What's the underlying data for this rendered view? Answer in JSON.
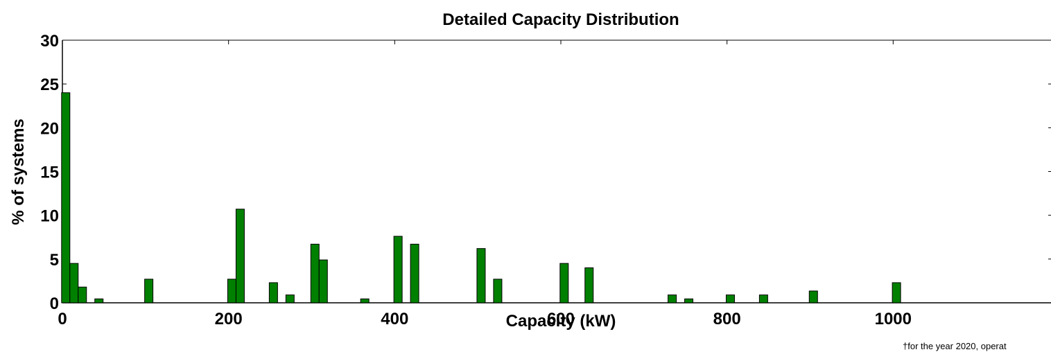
{
  "chart_data": {
    "type": "bar",
    "title": "Detailed Capacity Distribution",
    "xlabel": "Capacity (kW)",
    "ylabel": "% of systems",
    "xlim": [
      0,
      1190
    ],
    "ylim": [
      0,
      30
    ],
    "xticks": [
      0,
      200,
      400,
      600,
      800,
      1000
    ],
    "yticks": [
      0,
      5,
      10,
      15,
      20,
      25,
      30
    ],
    "bar_width": 10,
    "color": "#008000",
    "grid": false,
    "footnote": "†for the year 2020, operat",
    "bars": [
      {
        "x": 4,
        "value": 24.0
      },
      {
        "x": 14,
        "value": 4.5
      },
      {
        "x": 24,
        "value": 1.8
      },
      {
        "x": 44,
        "value": 0.45
      },
      {
        "x": 104,
        "value": 2.7
      },
      {
        "x": 204,
        "value": 2.7
      },
      {
        "x": 214,
        "value": 10.7
      },
      {
        "x": 254,
        "value": 2.3
      },
      {
        "x": 274,
        "value": 0.9
      },
      {
        "x": 304,
        "value": 6.7
      },
      {
        "x": 314,
        "value": 4.9
      },
      {
        "x": 364,
        "value": 0.45
      },
      {
        "x": 404,
        "value": 7.6
      },
      {
        "x": 424,
        "value": 6.7
      },
      {
        "x": 504,
        "value": 6.2
      },
      {
        "x": 524,
        "value": 2.7
      },
      {
        "x": 604,
        "value": 4.5
      },
      {
        "x": 634,
        "value": 4.0
      },
      {
        "x": 734,
        "value": 0.9
      },
      {
        "x": 754,
        "value": 0.45
      },
      {
        "x": 804,
        "value": 0.9
      },
      {
        "x": 844,
        "value": 0.9
      },
      {
        "x": 904,
        "value": 1.35
      },
      {
        "x": 1004,
        "value": 2.3
      }
    ]
  }
}
